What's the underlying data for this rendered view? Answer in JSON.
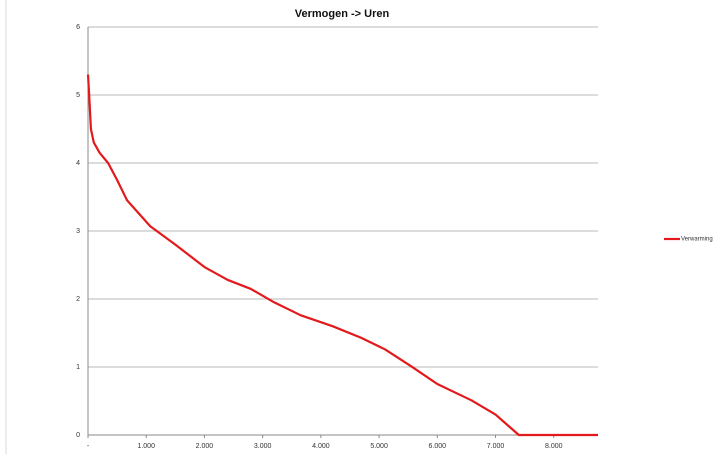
{
  "chart_data": {
    "type": "line",
    "title": "Vermogen -> Uren",
    "x": [
      0,
      20,
      50,
      100,
      200,
      345,
      500,
      672,
      1069,
      1500,
      2000,
      2400,
      2793,
      3200,
      3655,
      4200,
      4690,
      5100,
      5552,
      6000,
      6586,
      7000,
      7400,
      8760
    ],
    "series": [
      {
        "name": "Verwarming",
        "color": "#e31a1c",
        "values": [
          5.3,
          5.0,
          4.5,
          4.3,
          4.15,
          4.0,
          3.75,
          3.45,
          3.07,
          2.8,
          2.47,
          2.28,
          2.15,
          1.95,
          1.76,
          1.6,
          1.43,
          1.26,
          1.01,
          0.75,
          0.51,
          0.3,
          0,
          0
        ]
      }
    ],
    "xlim": [
      0,
      8760
    ],
    "xticks": [
      {
        "value": 0,
        "label": "-"
      },
      {
        "value": 1000,
        "label": "1.000"
      },
      {
        "value": 2000,
        "label": "2.000"
      },
      {
        "value": 3000,
        "label": "3.000"
      },
      {
        "value": 4000,
        "label": "4.000"
      },
      {
        "value": 5000,
        "label": "5.000"
      },
      {
        "value": 6000,
        "label": "6.000"
      },
      {
        "value": 7000,
        "label": "7.000"
      },
      {
        "value": 8000,
        "label": "8.000"
      }
    ],
    "ylim": [
      0,
      6
    ],
    "yticks": [
      0,
      1,
      2,
      3,
      4,
      5,
      6
    ],
    "grid": true,
    "legend": "right"
  }
}
